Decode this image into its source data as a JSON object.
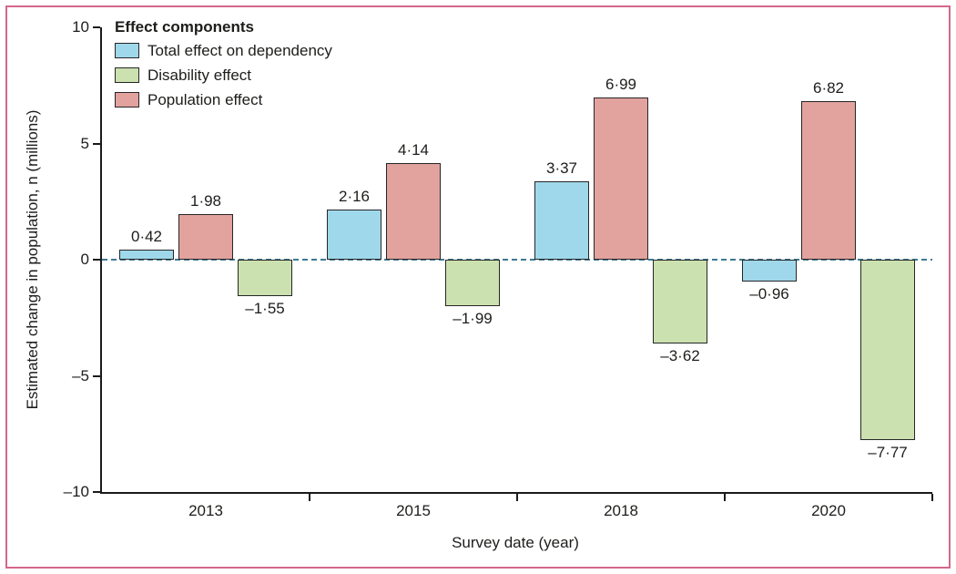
{
  "figure": {
    "frame_color": "#d5678b",
    "background": "#ffffff"
  },
  "legend": {
    "title": "Effect components",
    "items": [
      {
        "id": "total",
        "label": "Total effect on dependency",
        "color": "#a0d8eb"
      },
      {
        "id": "disability",
        "label": "Disability effect",
        "color": "#cbe1af"
      },
      {
        "id": "population",
        "label": "Population effect",
        "color": "#e2a39f"
      }
    ]
  },
  "axes": {
    "x": {
      "title": "Survey date (year)",
      "tick_labels": [
        "2013",
        "2015",
        "2018",
        "2020"
      ]
    },
    "y": {
      "title": "Estimated change in population, n (millions)",
      "ticks": [
        10,
        5,
        0,
        -5,
        -10
      ],
      "tick_labels": [
        "10",
        "5",
        "0",
        "–5",
        "–10"
      ],
      "range": [
        -10,
        10
      ]
    }
  },
  "chart_data": {
    "type": "bar",
    "title": "",
    "xlabel": "Survey date (year)",
    "ylabel": "Estimated change in population, n (millions)",
    "ylim": [
      -10,
      10
    ],
    "grid": false,
    "legend_position": "top-left",
    "zero_line": {
      "style": "dashed",
      "color": "#3d7a94"
    },
    "categories": [
      "2013",
      "2015",
      "2018",
      "2020"
    ],
    "series": [
      {
        "name": "Total effect on dependency",
        "color": "#a0d8eb",
        "values": [
          0.42,
          2.16,
          3.37,
          -0.96
        ],
        "labels": [
          "0·42",
          "2·16",
          "3·37",
          "–0·96"
        ]
      },
      {
        "name": "Population effect",
        "color": "#e2a39f",
        "values": [
          1.98,
          4.14,
          6.99,
          6.82
        ],
        "labels": [
          "1·98",
          "4·14",
          "6·99",
          "6·82"
        ]
      },
      {
        "name": "Disability effect",
        "color": "#cbe1af",
        "values": [
          -1.55,
          -1.99,
          -3.62,
          -7.77
        ],
        "labels": [
          "–1·55",
          "–1·99",
          "–3·62",
          "–7·77"
        ]
      }
    ],
    "bar_draw_order": [
      "Total effect on dependency",
      "Population effect",
      "Disability effect"
    ]
  }
}
